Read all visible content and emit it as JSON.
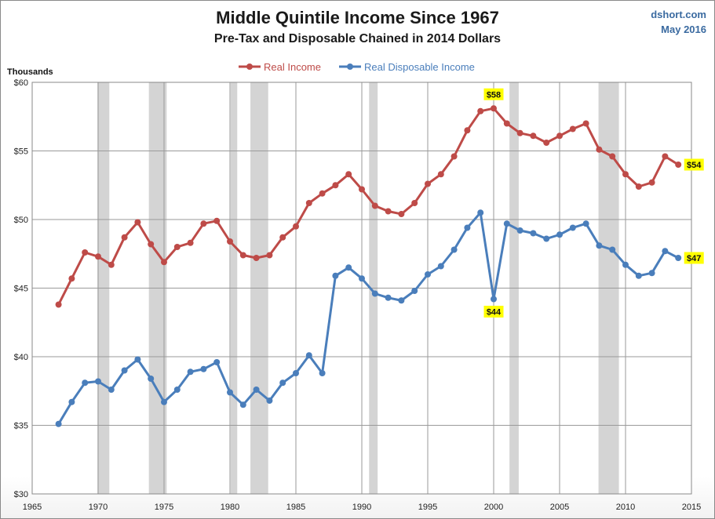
{
  "chart_data": {
    "type": "line",
    "title": "Middle Quintile Income Since 1967",
    "subtitle": "Pre-Tax and Disposable Chained in 2014 Dollars",
    "source": "dshort.com",
    "date": "May 2016",
    "ylabel": "Thousands",
    "xlim": [
      1965,
      2015
    ],
    "ylim": [
      30,
      60
    ],
    "x_ticks": [
      1965,
      1970,
      1975,
      1980,
      1985,
      1990,
      1995,
      2000,
      2005,
      2010,
      2015
    ],
    "y_ticks": [
      30,
      35,
      40,
      45,
      50,
      55,
      60
    ],
    "y_tick_labels": [
      "$30",
      "$35",
      "$40",
      "$45",
      "$50",
      "$55",
      "$60"
    ],
    "grid": true,
    "legend_position": "top-center",
    "recessions": [
      [
        1969.95,
        1970.85
      ],
      [
        1973.85,
        1975.2
      ],
      [
        1980.05,
        1980.55
      ],
      [
        1981.55,
        1982.9
      ],
      [
        1990.55,
        1991.2
      ],
      [
        2001.2,
        2001.9
      ],
      [
        2007.95,
        2009.5
      ]
    ],
    "x": [
      1967,
      1968,
      1969,
      1970,
      1971,
      1972,
      1973,
      1974,
      1975,
      1976,
      1977,
      1978,
      1979,
      1980,
      1981,
      1982,
      1983,
      1984,
      1985,
      1986,
      1987,
      1988,
      1989,
      1990,
      1991,
      1992,
      1993,
      1994,
      1995,
      1996,
      1997,
      1998,
      1999,
      2000,
      2001,
      2002,
      2003,
      2004,
      2005,
      2006,
      2007,
      2008,
      2009,
      2010,
      2011,
      2012,
      2013,
      2014
    ],
    "series": [
      {
        "name": "Real Income",
        "color": "#be4b48",
        "values": [
          43.8,
          45.7,
          47.6,
          47.3,
          46.7,
          48.7,
          49.8,
          48.2,
          46.9,
          48.0,
          48.3,
          49.7,
          49.9,
          48.4,
          47.4,
          47.2,
          47.4,
          48.7,
          49.5,
          51.2,
          51.9,
          52.5,
          53.3,
          52.2,
          51.0,
          50.6,
          50.4,
          51.2,
          52.6,
          53.3,
          54.6,
          56.5,
          57.9,
          58.1,
          57.0,
          56.3,
          56.1,
          55.6,
          56.1,
          56.6,
          57.0,
          55.1,
          54.6,
          53.3,
          52.4,
          52.7,
          54.6,
          54.0
        ],
        "annotations": [
          {
            "x": 2000,
            "label": "$58",
            "position": "above"
          },
          {
            "x": 2014,
            "label": "$54",
            "position": "right"
          }
        ]
      },
      {
        "name": "Real Disposable Income",
        "color": "#4a7ebb",
        "values": [
          35.1,
          36.7,
          38.1,
          38.2,
          37.6,
          39.0,
          39.8,
          38.4,
          36.7,
          37.6,
          38.9,
          39.1,
          39.6,
          37.4,
          36.5,
          37.6,
          36.8,
          38.1,
          38.8,
          40.1,
          38.8,
          45.9,
          46.5,
          45.7,
          44.6,
          44.3,
          44.1,
          44.8,
          46.0,
          46.6,
          47.8,
          49.4,
          50.5,
          44.2,
          49.7,
          49.2,
          49.0,
          48.6,
          48.9,
          49.4,
          49.7,
          48.1,
          47.8,
          46.7,
          45.9,
          46.1,
          47.7,
          47.2
        ],
        "annotations": [
          {
            "x": 2000,
            "label": "$44",
            "position": "below"
          },
          {
            "x": 2014,
            "label": "$47",
            "position": "right"
          }
        ]
      }
    ]
  }
}
